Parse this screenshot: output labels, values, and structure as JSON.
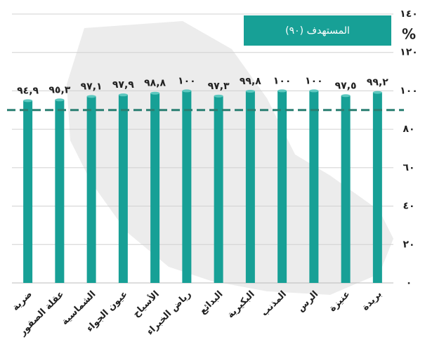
{
  "chart_data": {
    "type": "bar",
    "categories": [
      "ضرية",
      "عقلة الصقور",
      "الشماسية",
      "عيون الجواء",
      "الأسياح",
      "رياض الخبراء",
      "البدائع",
      "البكيرية",
      "المذنب",
      "الرس",
      "عنيزة",
      "بريدة"
    ],
    "values": [
      94.9,
      95.3,
      97.1,
      97.9,
      98.8,
      100,
      97.3,
      99.8,
      100,
      100,
      97.5,
      99.2
    ],
    "value_labels": [
      "٩٤,٩",
      "٩٥,٣",
      "٩٧,١",
      "٩٧,٩",
      "٩٨,٨",
      "١٠٠",
      "٩٧,٣",
      "٩٩,٨",
      "١٠٠",
      "١٠٠",
      "٩٧,٥",
      "٩٩,٢"
    ],
    "color": "#17a096",
    "ylim": [
      0,
      140
    ],
    "yticks": [
      {
        "value": 0,
        "label": "٠"
      },
      {
        "value": 20,
        "label": "٢٠"
      },
      {
        "value": 40,
        "label": "٤٠"
      },
      {
        "value": 60,
        "label": "٦٠"
      },
      {
        "value": 80,
        "label": "٨٠"
      },
      {
        "value": 100,
        "label": "١٠٠"
      },
      {
        "value": 120,
        "label": "١٢٠"
      },
      {
        "value": 140,
        "label": "١٤٠"
      }
    ],
    "y_axis_label": "%",
    "target": {
      "value": 90,
      "label": "المستهدف (٩٠)",
      "color": "#2a7f72"
    },
    "grid": true
  }
}
